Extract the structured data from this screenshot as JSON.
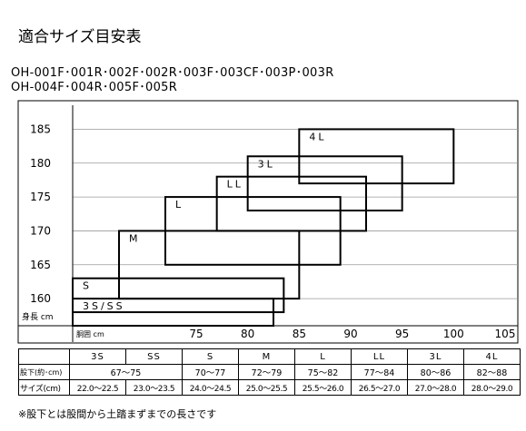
{
  "title": "適合サイズ目安表",
  "model_lines": [
    "OH-001F･001R･002F･002R･003F･003CF･003P･003R",
    "OH-004F･004R･005F･005R"
  ],
  "chart_data": {
    "type": "table",
    "xlabel": "胴囲 cm",
    "ylabel": "身長 cm",
    "xlim": [
      63,
      105
    ],
    "ylim": [
      156,
      188
    ],
    "xticks": [
      75,
      80,
      85,
      90,
      95,
      100,
      105
    ],
    "yticks": [
      160,
      165,
      170,
      175,
      180,
      185
    ],
    "grid": "horizontal",
    "regions": [
      {
        "label": "3S/SS",
        "waist": [
          63,
          82.5
        ],
        "height": [
          156,
          160
        ]
      },
      {
        "label": "S",
        "waist": [
          63,
          83.5
        ],
        "height": [
          158,
          163
        ]
      },
      {
        "label": "M",
        "waist": [
          67.5,
          85
        ],
        "height": [
          160,
          170
        ]
      },
      {
        "label": "L",
        "waist": [
          72,
          89
        ],
        "height": [
          165,
          175
        ]
      },
      {
        "label": "LL",
        "waist": [
          77,
          91.5
        ],
        "height": [
          170,
          178
        ]
      },
      {
        "label": "3L",
        "waist": [
          80,
          95
        ],
        "height": [
          173,
          181
        ]
      },
      {
        "label": "4L",
        "waist": [
          85,
          100
        ],
        "height": [
          177,
          185
        ]
      }
    ]
  },
  "size_table": {
    "headers": [
      "3S",
      "SS",
      "S",
      "M",
      "L",
      "LL",
      "3L",
      "4L"
    ],
    "rows": [
      {
        "label": "股下(約･cm)",
        "cells": [
          "67〜75",
          "70〜77",
          "72〜79",
          "75〜82",
          "77〜84",
          "80〜86",
          "82〜88"
        ]
      },
      {
        "label": "サイズ(cm)",
        "cells": [
          "22.0〜22.5",
          "23.0〜23.5",
          "24.0〜24.5",
          "25.0〜25.5",
          "25.5〜26.0",
          "26.5〜27.0",
          "27.0〜28.0",
          "28.0〜29.0"
        ]
      }
    ]
  },
  "footnote": "※股下とは股間から土踏まずまでの長さです"
}
